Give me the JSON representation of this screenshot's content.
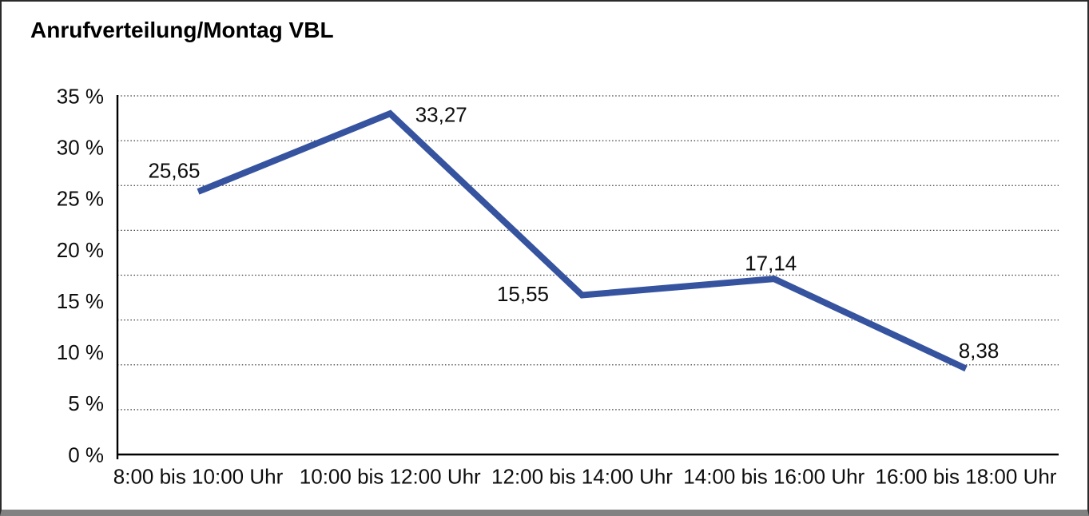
{
  "chart_data": {
    "type": "line",
    "title": "Anrufverteilung/Montag VBL",
    "categories": [
      "8:00 bis 10:00 Uhr",
      "10:00 bis 12:00 Uhr",
      "12:00 bis 14:00 Uhr",
      "14:00 bis 16:00 Uhr",
      "16:00 bis 18:00 Uhr"
    ],
    "values": [
      25.65,
      33.27,
      15.55,
      17.14,
      8.38
    ],
    "point_labels": [
      "25,65",
      "33,27",
      "15,55",
      "17,14",
      "8,38"
    ],
    "y_tick_labels": [
      "0 %",
      "5 %",
      "10 %",
      "15 %",
      "20 %",
      "25 %",
      "30 %",
      "35 %"
    ],
    "y_tick_values": [
      0,
      5,
      10,
      15,
      20,
      25,
      30,
      35
    ],
    "ylim": [
      0,
      35
    ],
    "xlabel": "",
    "ylabel": "",
    "legend": "none",
    "grid": "horizontal-dotted",
    "grid_intervals": 8,
    "line_color": "#36539f",
    "axis_color": "#000000",
    "gridline_color": "#3c3c3c",
    "text_color": "#0d0d0d"
  }
}
